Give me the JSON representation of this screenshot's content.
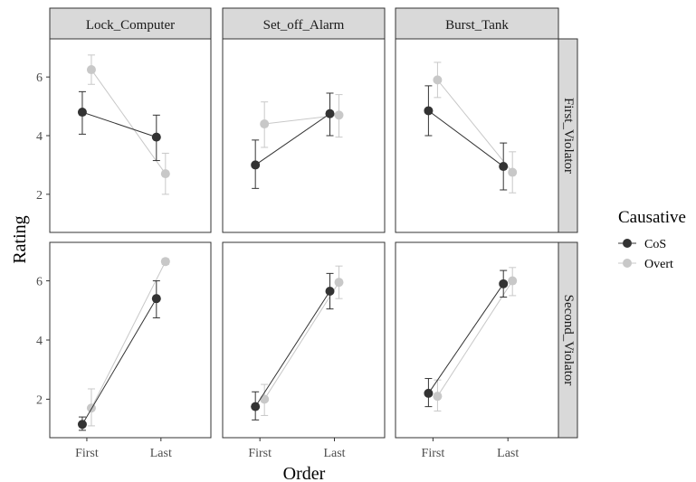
{
  "chart_data": {
    "type": "line",
    "xlabel": "Order",
    "ylabel": "Rating",
    "categories": [
      "First",
      "Last"
    ],
    "ylim": [
      0.7,
      7.3
    ],
    "yticks": [
      2,
      4,
      6
    ],
    "grid": false,
    "legend": {
      "title": "Causative",
      "placement": "right",
      "entries": [
        {
          "name": "CoS",
          "color": "#333333"
        },
        {
          "name": "Overt",
          "color": "#c8c8c8"
        }
      ]
    },
    "col_facets": [
      "Lock_Computer",
      "Set_off_Alarm",
      "Burst_Tank"
    ],
    "row_facets": [
      "First_Violator",
      "Second_Violator"
    ],
    "panels": [
      {
        "row": 0,
        "col": 0,
        "series": [
          {
            "name": "CoS",
            "values": [
              4.8,
              3.95
            ],
            "lower": [
              4.05,
              3.15
            ],
            "upper": [
              5.5,
              4.7
            ]
          },
          {
            "name": "Overt",
            "values": [
              6.25,
              2.7
            ],
            "lower": [
              5.75,
              2.0
            ],
            "upper": [
              6.75,
              3.4
            ]
          }
        ]
      },
      {
        "row": 0,
        "col": 1,
        "series": [
          {
            "name": "CoS",
            "values": [
              3.0,
              4.75
            ],
            "lower": [
              2.2,
              4.0
            ],
            "upper": [
              3.85,
              5.45
            ]
          },
          {
            "name": "Overt",
            "values": [
              4.4,
              4.7
            ],
            "lower": [
              3.6,
              3.95
            ],
            "upper": [
              5.15,
              5.4
            ]
          }
        ]
      },
      {
        "row": 0,
        "col": 2,
        "series": [
          {
            "name": "CoS",
            "values": [
              4.85,
              2.95
            ],
            "lower": [
              4.0,
              2.15
            ],
            "upper": [
              5.7,
              3.75
            ]
          },
          {
            "name": "Overt",
            "values": [
              5.9,
              2.75
            ],
            "lower": [
              5.3,
              2.05
            ],
            "upper": [
              6.5,
              3.45
            ]
          }
        ]
      },
      {
        "row": 1,
        "col": 0,
        "series": [
          {
            "name": "CoS",
            "values": [
              1.15,
              5.4
            ],
            "lower": [
              0.95,
              4.75
            ],
            "upper": [
              1.4,
              6.0
            ]
          },
          {
            "name": "Overt",
            "values": [
              1.7,
              6.65
            ],
            "lower": [
              1.1,
              6.55
            ],
            "upper": [
              2.35,
              6.75
            ]
          }
        ]
      },
      {
        "row": 1,
        "col": 1,
        "series": [
          {
            "name": "CoS",
            "values": [
              1.75,
              5.65
            ],
            "lower": [
              1.3,
              5.05
            ],
            "upper": [
              2.25,
              6.25
            ]
          },
          {
            "name": "Overt",
            "values": [
              2.0,
              5.95
            ],
            "lower": [
              1.45,
              5.4
            ],
            "upper": [
              2.5,
              6.5
            ]
          }
        ]
      },
      {
        "row": 1,
        "col": 2,
        "series": [
          {
            "name": "CoS",
            "values": [
              2.2,
              5.9
            ],
            "lower": [
              1.75,
              5.45
            ],
            "upper": [
              2.7,
              6.35
            ]
          },
          {
            "name": "Overt",
            "values": [
              2.1,
              6.0
            ],
            "lower": [
              1.6,
              5.5
            ],
            "upper": [
              2.65,
              6.45
            ]
          }
        ]
      }
    ]
  }
}
